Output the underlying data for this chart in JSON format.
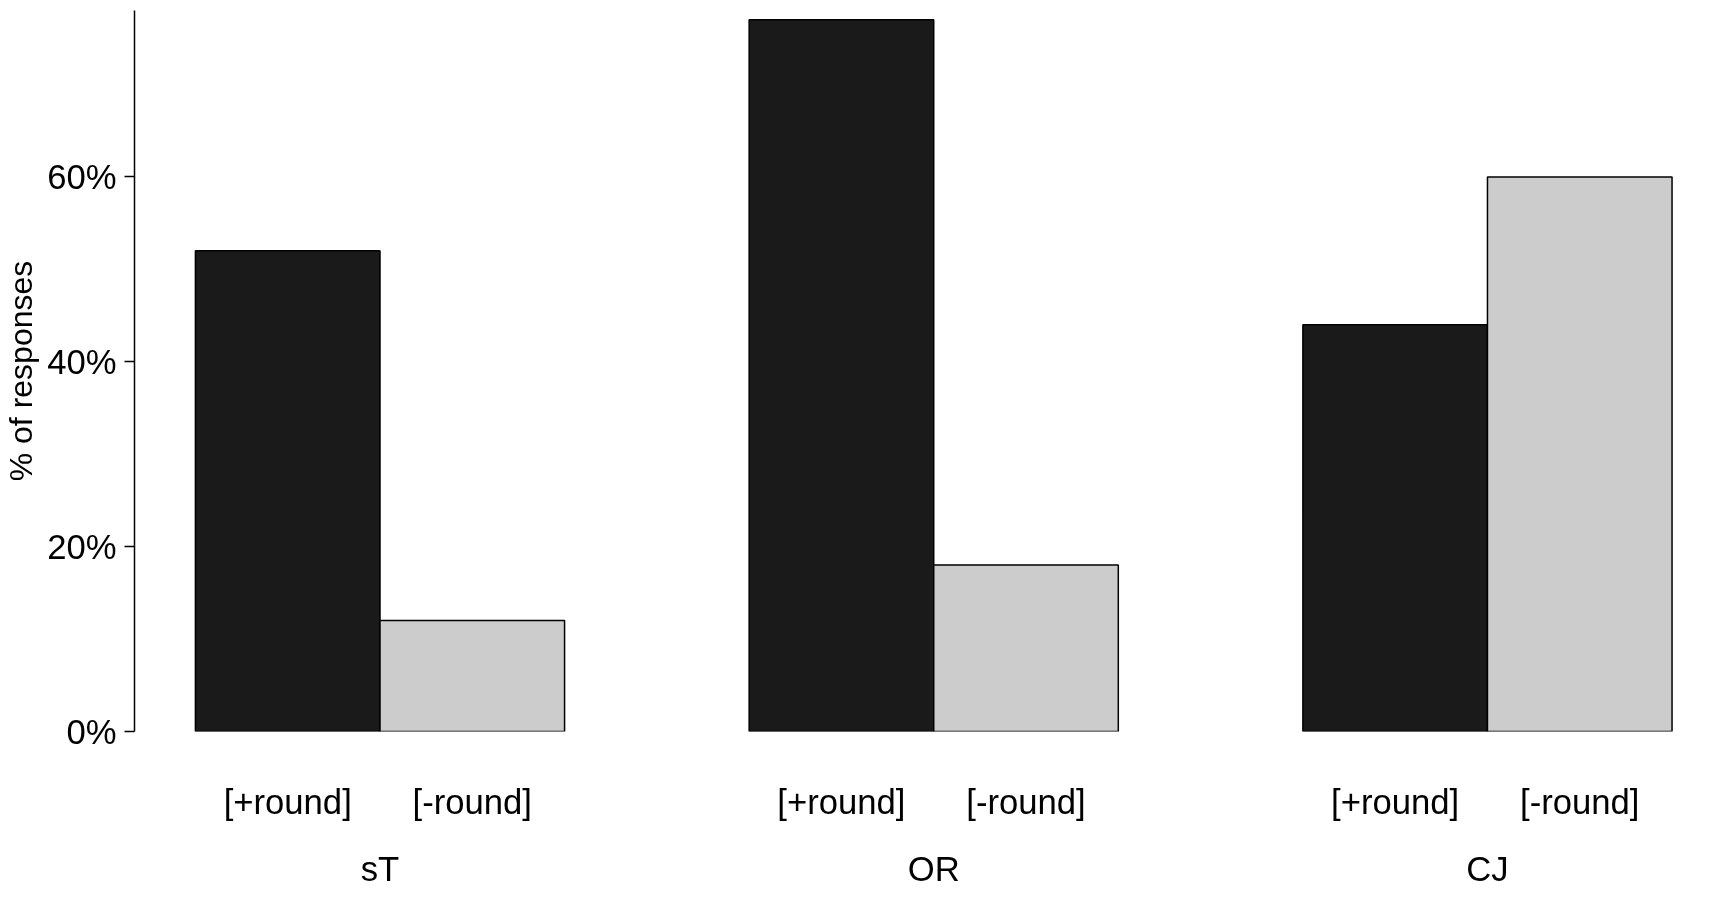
{
  "chart_data": {
    "type": "bar",
    "ylabel": "% of responses",
    "categories": [
      "sT",
      "OR",
      "CJ"
    ],
    "series": [
      {
        "name": "[+round]",
        "color": "#1a1a1a",
        "values": [
          52,
          77,
          44
        ]
      },
      {
        "name": "[-round]",
        "color": "#cccccc",
        "values": [
          12,
          18,
          60
        ]
      }
    ],
    "ylim": [
      0,
      78
    ],
    "yticks": [
      {
        "value": 0,
        "label": "0%"
      },
      {
        "value": 20,
        "label": "20%"
      },
      {
        "value": 40,
        "label": "40%"
      },
      {
        "value": 60,
        "label": "60%"
      }
    ]
  }
}
